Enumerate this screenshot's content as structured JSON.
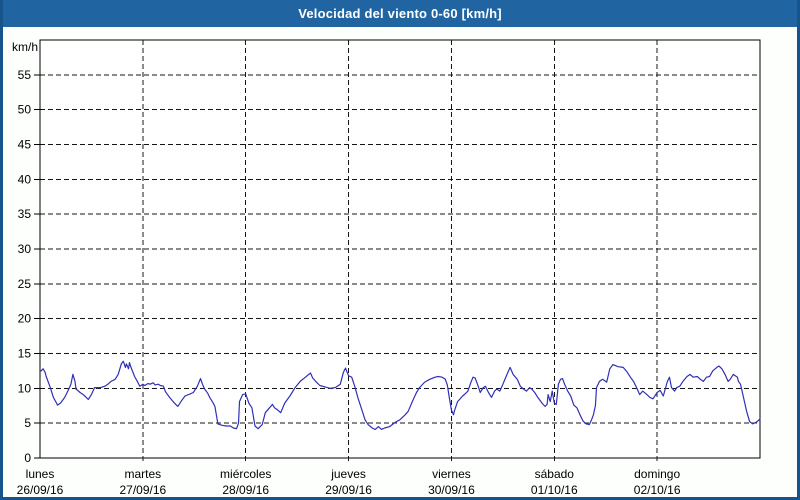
{
  "window": {
    "title": "Velocidad del viento 0-60 [km/h]"
  },
  "colors": {
    "titlebar_bg": "#2065a2",
    "page_border": "#17548e",
    "page_bg": "#fdfffd",
    "plot_bg": "#ffffff",
    "grid": "#151515",
    "axis": "#000000",
    "line": "#3030b8",
    "title_text": "#ffffff",
    "label_text": "#000000"
  },
  "chart_data": {
    "type": "line",
    "title": "Velocidad del viento 0-60 [km/h]",
    "ylabel": "km/h",
    "xlabel": "",
    "ylim": [
      0,
      60
    ],
    "ytick_step": 5,
    "ytick_labels": [
      "0",
      "5",
      "10",
      "15",
      "20",
      "25",
      "30",
      "35",
      "40",
      "45",
      "50",
      "55"
    ],
    "grid": "dashed",
    "legend_position": "none",
    "x_axis_days": [
      {
        "weekday": "lunes",
        "date": "26/09/16"
      },
      {
        "weekday": "martes",
        "date": "27/09/16"
      },
      {
        "weekday": "miércoles",
        "date": "28/09/16"
      },
      {
        "weekday": "jueves",
        "date": "29/09/16"
      },
      {
        "weekday": "viernes",
        "date": "30/09/16"
      },
      {
        "weekday": "sábado",
        "date": "01/10/16"
      },
      {
        "weekday": "domingo",
        "date": "02/10/16"
      }
    ],
    "x_unit": "days (0 = lunes 26/09/16 00:00, axis spans 7 days)",
    "series": [
      {
        "name": "velocidad del viento",
        "color": "#3030b8",
        "points": [
          [
            0.01,
            12.5
          ],
          [
            0.03,
            12.8
          ],
          [
            0.05,
            12.3
          ],
          [
            0.06,
            11.7
          ],
          [
            0.1,
            10.1
          ],
          [
            0.13,
            8.7
          ],
          [
            0.16,
            7.9
          ],
          [
            0.17,
            7.6
          ],
          [
            0.2,
            7.9
          ],
          [
            0.24,
            8.7
          ],
          [
            0.27,
            9.6
          ],
          [
            0.3,
            10.6
          ],
          [
            0.32,
            12.0
          ],
          [
            0.34,
            11.0
          ],
          [
            0.35,
            9.9
          ],
          [
            0.39,
            9.4
          ],
          [
            0.42,
            9.1
          ],
          [
            0.45,
            8.7
          ],
          [
            0.47,
            8.4
          ],
          [
            0.5,
            9.1
          ],
          [
            0.53,
            10.1
          ],
          [
            0.59,
            10.1
          ],
          [
            0.63,
            10.3
          ],
          [
            0.66,
            10.6
          ],
          [
            0.69,
            11.0
          ],
          [
            0.73,
            11.3
          ],
          [
            0.76,
            12.0
          ],
          [
            0.79,
            13.5
          ],
          [
            0.81,
            13.9
          ],
          [
            0.83,
            13.0
          ],
          [
            0.84,
            13.5
          ],
          [
            0.86,
            12.8
          ],
          [
            0.87,
            13.7
          ],
          [
            0.88,
            13.2
          ],
          [
            0.92,
            11.7
          ],
          [
            0.95,
            10.9
          ],
          [
            0.97,
            10.3
          ],
          [
            1.0,
            10.6
          ],
          [
            1.02,
            10.4
          ],
          [
            1.05,
            10.7
          ],
          [
            1.07,
            10.6
          ],
          [
            1.1,
            10.8
          ],
          [
            1.12,
            10.5
          ],
          [
            1.15,
            10.6
          ],
          [
            1.17,
            10.4
          ],
          [
            1.2,
            10.3
          ],
          [
            1.22,
            9.5
          ],
          [
            1.26,
            8.7
          ],
          [
            1.3,
            8.0
          ],
          [
            1.34,
            7.4
          ],
          [
            1.38,
            8.3
          ],
          [
            1.41,
            8.9
          ],
          [
            1.46,
            9.2
          ],
          [
            1.49,
            9.4
          ],
          [
            1.53,
            10.3
          ],
          [
            1.56,
            11.4
          ],
          [
            1.58,
            10.6
          ],
          [
            1.6,
            9.9
          ],
          [
            1.63,
            9.3
          ],
          [
            1.65,
            8.7
          ],
          [
            1.68,
            8.0
          ],
          [
            1.7,
            7.4
          ],
          [
            1.73,
            4.9
          ],
          [
            1.77,
            4.7
          ],
          [
            1.81,
            4.6
          ],
          [
            1.85,
            4.6
          ],
          [
            1.88,
            4.3
          ],
          [
            1.91,
            4.2
          ],
          [
            1.93,
            5.0
          ],
          [
            1.94,
            8.1
          ],
          [
            1.97,
            9.1
          ],
          [
            2.0,
            9.2
          ],
          [
            2.03,
            7.9
          ],
          [
            2.06,
            7.2
          ],
          [
            2.09,
            4.6
          ],
          [
            2.12,
            4.2
          ],
          [
            2.16,
            4.8
          ],
          [
            2.19,
            6.5
          ],
          [
            2.22,
            7.0
          ],
          [
            2.26,
            7.7
          ],
          [
            2.28,
            7.2
          ],
          [
            2.31,
            6.9
          ],
          [
            2.34,
            6.5
          ],
          [
            2.38,
            7.9
          ],
          [
            2.43,
            8.9
          ],
          [
            2.48,
            10.1
          ],
          [
            2.53,
            11.0
          ],
          [
            2.58,
            11.6
          ],
          [
            2.63,
            12.2
          ],
          [
            2.65,
            11.5
          ],
          [
            2.68,
            11.0
          ],
          [
            2.72,
            10.4
          ],
          [
            2.77,
            10.2
          ],
          [
            2.82,
            10.0
          ],
          [
            2.87,
            10.1
          ],
          [
            2.92,
            10.6
          ],
          [
            2.95,
            12.3
          ],
          [
            2.97,
            12.9
          ],
          [
            3.0,
            11.8
          ],
          [
            3.03,
            11.6
          ],
          [
            3.06,
            10.3
          ],
          [
            3.09,
            8.7
          ],
          [
            3.13,
            6.9
          ],
          [
            3.16,
            5.5
          ],
          [
            3.19,
            4.8
          ],
          [
            3.23,
            4.3
          ],
          [
            3.26,
            4.1
          ],
          [
            3.29,
            4.5
          ],
          [
            3.32,
            4.1
          ],
          [
            3.35,
            4.3
          ],
          [
            3.4,
            4.5
          ],
          [
            3.45,
            5.1
          ],
          [
            3.5,
            5.5
          ],
          [
            3.55,
            6.2
          ],
          [
            3.58,
            6.7
          ],
          [
            3.62,
            8.1
          ],
          [
            3.66,
            9.4
          ],
          [
            3.69,
            10.1
          ],
          [
            3.74,
            10.9
          ],
          [
            3.79,
            11.3
          ],
          [
            3.84,
            11.6
          ],
          [
            3.87,
            11.7
          ],
          [
            3.91,
            11.6
          ],
          [
            3.94,
            11.3
          ],
          [
            3.96,
            10.5
          ],
          [
            3.98,
            8.6
          ],
          [
            4.0,
            6.9
          ],
          [
            4.02,
            6.2
          ],
          [
            4.03,
            6.8
          ],
          [
            4.06,
            8.1
          ],
          [
            4.09,
            8.6
          ],
          [
            4.11,
            8.9
          ],
          [
            4.14,
            9.3
          ],
          [
            4.16,
            9.6
          ],
          [
            4.19,
            10.9
          ],
          [
            4.21,
            11.6
          ],
          [
            4.23,
            11.5
          ],
          [
            4.26,
            10.3
          ],
          [
            4.28,
            9.4
          ],
          [
            4.31,
            10.1
          ],
          [
            4.33,
            10.3
          ],
          [
            4.36,
            9.4
          ],
          [
            4.39,
            8.7
          ],
          [
            4.42,
            9.6
          ],
          [
            4.44,
            9.9
          ],
          [
            4.47,
            9.6
          ],
          [
            4.5,
            10.6
          ],
          [
            4.54,
            12.0
          ],
          [
            4.57,
            13.0
          ],
          [
            4.6,
            12.0
          ],
          [
            4.64,
            11.3
          ],
          [
            4.67,
            10.3
          ],
          [
            4.7,
            9.9
          ],
          [
            4.73,
            9.6
          ],
          [
            4.76,
            10.1
          ],
          [
            4.78,
            9.9
          ],
          [
            4.81,
            9.4
          ],
          [
            4.84,
            8.7
          ],
          [
            4.88,
            7.9
          ],
          [
            4.91,
            7.4
          ],
          [
            4.93,
            7.7
          ],
          [
            4.94,
            9.1
          ],
          [
            4.96,
            8.1
          ],
          [
            4.98,
            9.6
          ],
          [
            5.0,
            7.9
          ],
          [
            5.02,
            7.7
          ],
          [
            5.04,
            10.6
          ],
          [
            5.06,
            11.3
          ],
          [
            5.08,
            11.4
          ],
          [
            5.1,
            10.6
          ],
          [
            5.13,
            9.6
          ],
          [
            5.16,
            8.9
          ],
          [
            5.19,
            7.6
          ],
          [
            5.22,
            7.2
          ],
          [
            5.25,
            6.2
          ],
          [
            5.28,
            5.3
          ],
          [
            5.31,
            4.9
          ],
          [
            5.34,
            4.8
          ],
          [
            5.36,
            5.4
          ],
          [
            5.38,
            6.2
          ],
          [
            5.4,
            7.5
          ],
          [
            5.41,
            10.1
          ],
          [
            5.44,
            11.0
          ],
          [
            5.47,
            11.3
          ],
          [
            5.51,
            10.9
          ],
          [
            5.54,
            12.8
          ],
          [
            5.57,
            13.4
          ],
          [
            5.62,
            13.1
          ],
          [
            5.67,
            13.0
          ],
          [
            5.71,
            12.3
          ],
          [
            5.74,
            11.6
          ],
          [
            5.77,
            11.0
          ],
          [
            5.8,
            10.1
          ],
          [
            5.83,
            9.1
          ],
          [
            5.86,
            9.6
          ],
          [
            5.9,
            9.1
          ],
          [
            5.93,
            8.7
          ],
          [
            5.96,
            8.5
          ],
          [
            6.0,
            9.4
          ],
          [
            6.03,
            9.7
          ],
          [
            6.06,
            8.9
          ],
          [
            6.1,
            11.0
          ],
          [
            6.12,
            11.6
          ],
          [
            6.14,
            10.1
          ],
          [
            6.17,
            9.6
          ],
          [
            6.19,
            10.1
          ],
          [
            6.22,
            10.3
          ],
          [
            6.25,
            11.0
          ],
          [
            6.29,
            11.7
          ],
          [
            6.32,
            12.0
          ],
          [
            6.35,
            11.6
          ],
          [
            6.39,
            11.7
          ],
          [
            6.42,
            11.3
          ],
          [
            6.45,
            11.0
          ],
          [
            6.48,
            11.6
          ],
          [
            6.51,
            11.7
          ],
          [
            6.54,
            12.5
          ],
          [
            6.58,
            13.0
          ],
          [
            6.6,
            13.2
          ],
          [
            6.63,
            12.8
          ],
          [
            6.66,
            12.0
          ],
          [
            6.69,
            11.0
          ],
          [
            6.71,
            11.3
          ],
          [
            6.74,
            12.0
          ],
          [
            6.78,
            11.6
          ],
          [
            6.79,
            11.0
          ],
          [
            6.81,
            10.6
          ],
          [
            6.84,
            8.7
          ],
          [
            6.87,
            6.7
          ],
          [
            6.9,
            5.2
          ],
          [
            6.93,
            4.9
          ],
          [
            6.97,
            5.2
          ],
          [
            7.0,
            5.6
          ]
        ]
      }
    ]
  }
}
